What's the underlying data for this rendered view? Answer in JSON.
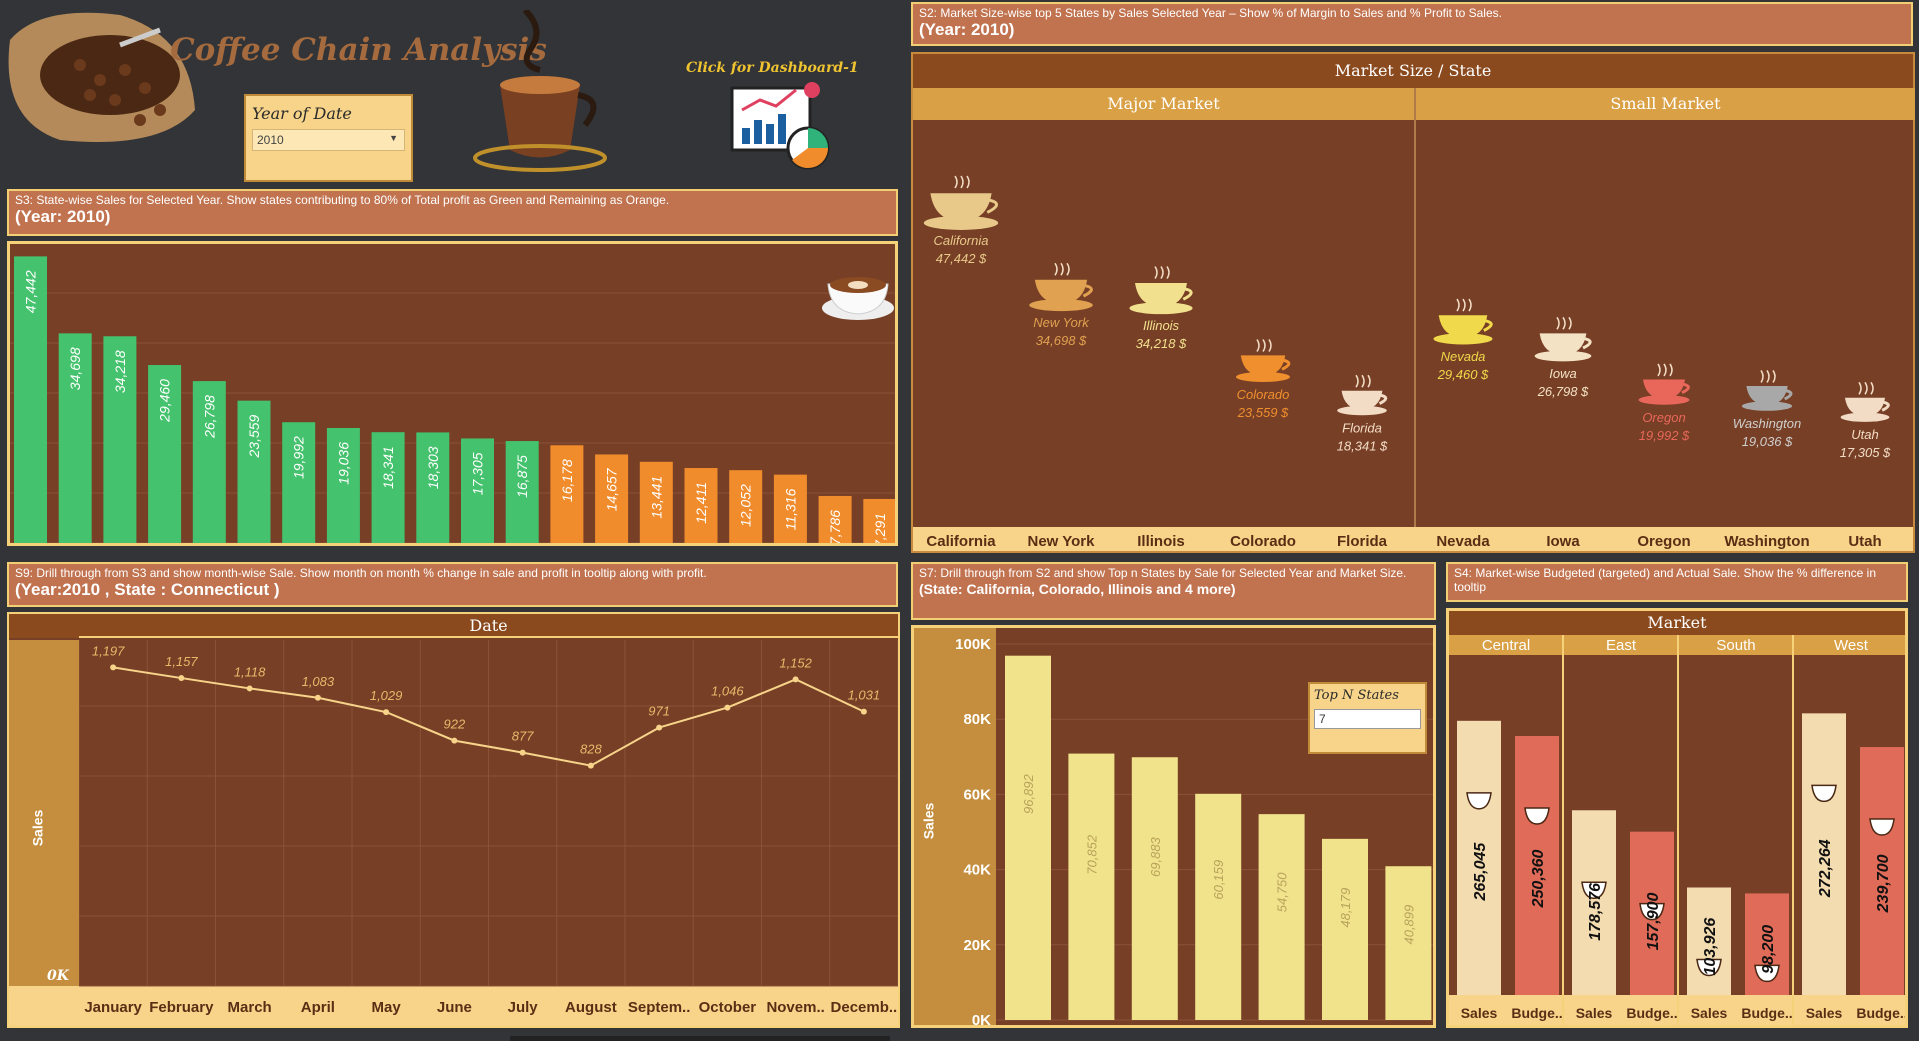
{
  "header": {
    "title": "Coffee Chain Analysis",
    "filter_label": "Year of Date",
    "filter_value": "2010",
    "dashboard_link": "Click for Dashboard-1"
  },
  "s2": {
    "desc": "S2: Market Size-wise top 5 States by Sales Selected Year – Show % of Margin to Sales and %  Profit to Sales.",
    "year": "(Year: 2010)",
    "header": "Market Size  /  State",
    "markets": [
      {
        "name": "Major Market",
        "states": [
          {
            "state": "California",
            "sales": "47,442 $",
            "value": 47442,
            "color": "#e8c989"
          },
          {
            "state": "New York",
            "sales": "34,698 $",
            "value": 34698,
            "color": "#e0a150"
          },
          {
            "state": "Illinois",
            "sales": "34,218 $",
            "value": 34218,
            "color": "#f1e08d"
          },
          {
            "state": "Colorado",
            "sales": "23,559 $",
            "value": 23559,
            "color": "#ef8f2e"
          },
          {
            "state": "Florida",
            "sales": "18,341 $",
            "value": 18341,
            "color": "#f3dcc5"
          }
        ]
      },
      {
        "name": "Small Market",
        "states": [
          {
            "state": "Nevada",
            "sales": "29,460 $",
            "value": 29460,
            "color": "#f0d94a"
          },
          {
            "state": "Iowa",
            "sales": "26,798 $",
            "value": 26798,
            "color": "#f3e2c3"
          },
          {
            "state": "Oregon",
            "sales": "19,992 $",
            "value": 19992,
            "color": "#e8675a"
          },
          {
            "state": "Washington",
            "sales": "19,036 $",
            "value": 19036,
            "color": "#a8a8a8"
          },
          {
            "state": "Utah",
            "sales": "17,305 $",
            "value": 17305,
            "color": "#f3dcc5"
          }
        ]
      }
    ]
  },
  "s3": {
    "desc": "S3: State-wise Sales for Selected Year.  Show states contributing to 80% of Total profit as Green and Remaining as Orange.",
    "year": "(Year: 2010)"
  },
  "s9": {
    "desc": "S9: Drill through from S3 and show month-wise Sale. Show month on month % change in sale and profit in tooltip along with profit.",
    "filter": "(Year:2010 , State : Connecticut )",
    "header": "Date",
    "ylabel": "Sales",
    "zero_label": "0K"
  },
  "s7": {
    "desc": "S7: Drill through from S2 and show Top n States by Sale for Selected Year and Market Size.",
    "filter": "(State: California, Colorado, Illinois and 4 more)",
    "ylabel": "Sales",
    "topn_label": "Top N States",
    "topn_value": "7"
  },
  "s4": {
    "desc": "S4: Market-wise Budgeted (targeted) and Actual Sale. Show the % difference in tooltip",
    "header": "Market"
  },
  "colors": {
    "green": "#44c26d",
    "orange": "#f08c2c",
    "panel": "#773f26",
    "gold": "#f5d27a",
    "salmon": "#c17350"
  },
  "chart_data": [
    {
      "type": "bar",
      "name": "S3 state-wise sales",
      "values": [
        47442,
        34698,
        34218,
        29460,
        26798,
        23559,
        19992,
        19036,
        18341,
        18303,
        17305,
        16875,
        16178,
        14657,
        13441,
        12411,
        12052,
        11316,
        7786,
        7291
      ],
      "labels": [
        "47,442",
        "34,698",
        "34,218",
        "29,460",
        "26,798",
        "23,559",
        "19,992",
        "19,036",
        "18,341",
        "18,303",
        "17,305",
        "16,875",
        "16,178",
        "14,657",
        "13,441",
        "12,411",
        "12,052",
        "11,316",
        "7,786",
        "7,291"
      ],
      "groups": [
        "green",
        "green",
        "green",
        "green",
        "green",
        "green",
        "green",
        "green",
        "green",
        "green",
        "green",
        "green",
        "orange",
        "orange",
        "orange",
        "orange",
        "orange",
        "orange",
        "orange",
        "orange"
      ]
    },
    {
      "type": "line",
      "name": "S9 month-wise sales",
      "categories": [
        "January",
        "February",
        "March",
        "April",
        "May",
        "June",
        "July",
        "August",
        "Septem..",
        "October",
        "Novem..",
        "Decemb.."
      ],
      "values": [
        1197,
        1157,
        1118,
        1083,
        1029,
        922,
        877,
        828,
        971,
        1046,
        1152,
        1031
      ],
      "labels": [
        "1,197",
        "1,157",
        "1,118",
        "1,083",
        "1,029",
        "922",
        "877",
        "828",
        "971",
        "1,046",
        "1,152",
        "1,031"
      ]
    },
    {
      "type": "bar",
      "name": "S7 top n states",
      "values": [
        96892,
        70852,
        69883,
        60159,
        54750,
        48179,
        40899
      ],
      "labels": [
        "96,892",
        "70,852",
        "69,883",
        "60,159",
        "54,750",
        "48,179",
        "40,899"
      ],
      "yticks": [
        "0K",
        "20K",
        "40K",
        "60K",
        "80K",
        "100K"
      ],
      "ylim": [
        0,
        100000
      ]
    },
    {
      "type": "bar",
      "name": "S4 market budget vs actual",
      "categories": [
        "Central",
        "East",
        "South",
        "West"
      ],
      "series": [
        {
          "name": "Sales",
          "values": [
            265045,
            178576,
            103926,
            272264
          ],
          "labels": [
            "265,045",
            "178,576",
            "103,926",
            "272,264"
          ],
          "color": "#f3dcb0"
        },
        {
          "name": "Budge..",
          "values": [
            250360,
            157900,
            98200,
            239700
          ],
          "labels": [
            "250,360",
            "157,900",
            "98,200",
            "239,700"
          ],
          "color": "#e06b58"
        }
      ]
    }
  ]
}
